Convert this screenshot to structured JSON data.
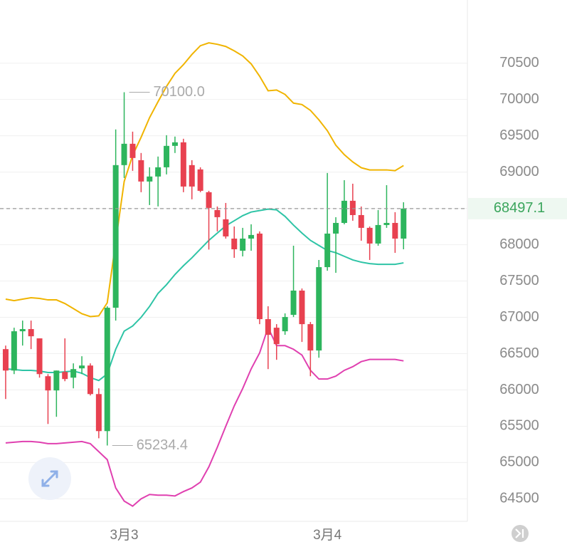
{
  "chart_data": {
    "type": "candlestick",
    "categories": [
      null,
      null,
      null,
      null,
      null,
      null,
      null,
      null,
      null,
      null,
      null,
      null,
      null,
      null,
      "3月3",
      null,
      null,
      null,
      null,
      null,
      null,
      null,
      null,
      null,
      null,
      null,
      null,
      null,
      null,
      null,
      null,
      null,
      null,
      null,
      null,
      null,
      null,
      null,
      "3月4",
      null,
      null,
      null,
      null,
      null,
      null,
      null,
      null,
      null
    ],
    "open": [
      66562,
      66267,
      66808,
      66838,
      66710,
      66189,
      65993,
      66248,
      66169,
      66297,
      66336,
      65943,
      65433,
      67132,
      69096,
      69390,
      69164,
      68870,
      68939,
      69066,
      69361,
      69410,
      69096,
      69037,
      68723,
      68477,
      68350,
      68084,
      67917,
      68084,
      68153,
      66975,
      66857,
      66808,
      67034,
      67368,
      66906,
      66543,
      67691,
      68153,
      68300,
      68605,
      68408,
      68232,
      68016,
      68271,
      68300,
      68084
    ],
    "high": [
      66611,
      66857,
      66955,
      66955,
      66710,
      66218,
      66267,
      66710,
      66366,
      66464,
      66366,
      66022,
      67152,
      69587,
      70100,
      69557,
      69263,
      69066,
      69214,
      69508,
      69489,
      69459,
      69164,
      69066,
      68742,
      68526,
      68575,
      68251,
      68232,
      68281,
      68183,
      67152,
      66906,
      67054,
      67986,
      67397,
      66936,
      67790,
      68988,
      68379,
      68889,
      68840,
      68526,
      68251,
      68477,
      68820,
      68448,
      68585
    ],
    "low": [
      65875,
      66218,
      66611,
      66562,
      66169,
      65531,
      65630,
      66120,
      66022,
      66218,
      65924,
      65334,
      65234.4,
      66955,
      68919,
      69017,
      68723,
      68546,
      68527,
      68968,
      69263,
      68723,
      68625,
      68723,
      67933,
      68183,
      68084,
      67819,
      67839,
      67917,
      66906,
      66287,
      66415,
      66759,
      67004,
      66661,
      66189,
      66444,
      67642,
      67613,
      68281,
      68330,
      68055,
      67790,
      67986,
      68232,
      67888,
      67937
    ],
    "close": [
      66267,
      66808,
      66838,
      66739,
      66218,
      65993,
      66267,
      66150,
      66287,
      66336,
      65943,
      65433,
      67132,
      69096,
      69390,
      69194,
      68870,
      68939,
      69066,
      69361,
      69410,
      68801,
      68801,
      68742,
      68507,
      68379,
      68114,
      67937,
      68084,
      68134,
      66975,
      66759,
      66631,
      67004,
      67368,
      66906,
      66543,
      67691,
      68153,
      68300,
      68605,
      68408,
      68232,
      68016,
      68271,
      68300,
      68084,
      68497.1
    ],
    "up_color": "#2db55d",
    "down_color": "#e84150",
    "overlays": [
      {
        "color": "#f0b400",
        "values": [
          67250,
          67230,
          67250,
          67270,
          67260,
          67240,
          67240,
          67190,
          67120,
          67050,
          67010,
          67020,
          67200,
          68040,
          68870,
          69230,
          69480,
          69750,
          69970,
          70180,
          70360,
          70480,
          70620,
          70740,
          70780,
          70760,
          70730,
          70670,
          70600,
          70490,
          70320,
          70120,
          70130,
          70070,
          69950,
          69930,
          69850,
          69720,
          69570,
          69370,
          69240,
          69140,
          69060,
          69030,
          69030,
          69030,
          69020,
          69090
        ]
      },
      {
        "color": "#2ec4a6",
        "values": [
          66290,
          66280,
          66270,
          66270,
          66260,
          66240,
          66240,
          66250,
          66260,
          66230,
          66170,
          66130,
          66220,
          66560,
          66810,
          66880,
          67000,
          67150,
          67330,
          67450,
          67590,
          67710,
          67820,
          67940,
          68060,
          68160,
          68260,
          68330,
          68400,
          68450,
          68470,
          68490,
          68480,
          68390,
          68270,
          68160,
          68060,
          67990,
          67920,
          67890,
          67840,
          67790,
          67760,
          67740,
          67730,
          67730,
          67730,
          67750
        ]
      },
      {
        "color": "#e040b0",
        "values": [
          65270,
          65280,
          65290,
          65290,
          65280,
          65260,
          65260,
          65270,
          65280,
          65290,
          65260,
          65150,
          65040,
          64650,
          64470,
          64400,
          64500,
          64560,
          64550,
          64550,
          64540,
          64600,
          64650,
          64730,
          64940,
          65210,
          65500,
          65780,
          66020,
          66290,
          66510,
          66860,
          66610,
          66610,
          66560,
          66480,
          66270,
          66150,
          66150,
          66190,
          66270,
          66320,
          66390,
          66420,
          66420,
          66420,
          66420,
          66400
        ]
      }
    ],
    "ylim": [
      64190,
      71370
    ],
    "yticks": [
      64500,
      65000,
      65500,
      66000,
      66500,
      67000,
      67500,
      68000,
      68500,
      69000,
      69500,
      70000,
      70500
    ],
    "grid": true,
    "last_price_label": "68497.1",
    "max_label": "70100.0",
    "min_label": "65234.4"
  }
}
